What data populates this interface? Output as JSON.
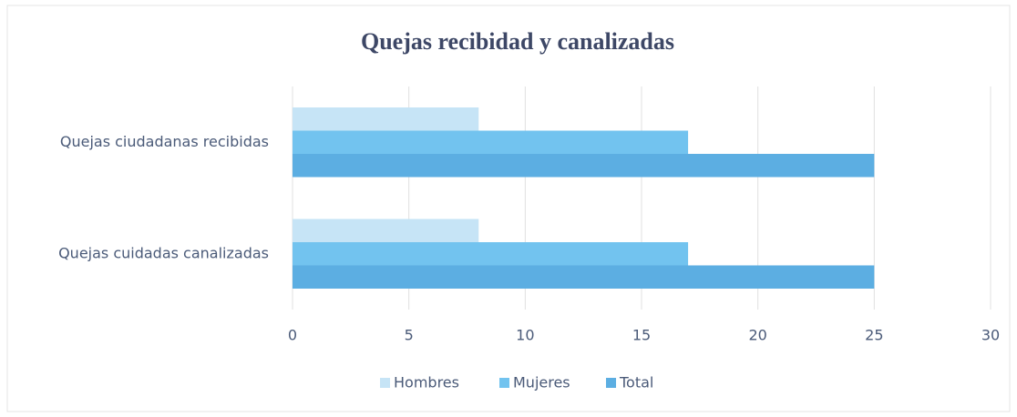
{
  "chart_data": {
    "type": "bar",
    "orientation": "horizontal",
    "title": "Quejas recibidad y canalizadas",
    "categories": [
      "Quejas ciudadanas recibidas",
      "Quejas cuidadas canalizadas"
    ],
    "series": [
      {
        "name": "Hombres",
        "color": "#c6e4f6",
        "values": [
          8,
          8
        ]
      },
      {
        "name": "Mujeres",
        "color": "#72c3ef",
        "values": [
          17,
          17
        ]
      },
      {
        "name": "Total",
        "color": "#5caee2",
        "values": [
          25,
          25
        ]
      }
    ],
    "xlim": [
      0,
      30
    ],
    "xticks": [
      0,
      5,
      10,
      15,
      20,
      25,
      30
    ],
    "grid": true,
    "legend": "bottom"
  }
}
